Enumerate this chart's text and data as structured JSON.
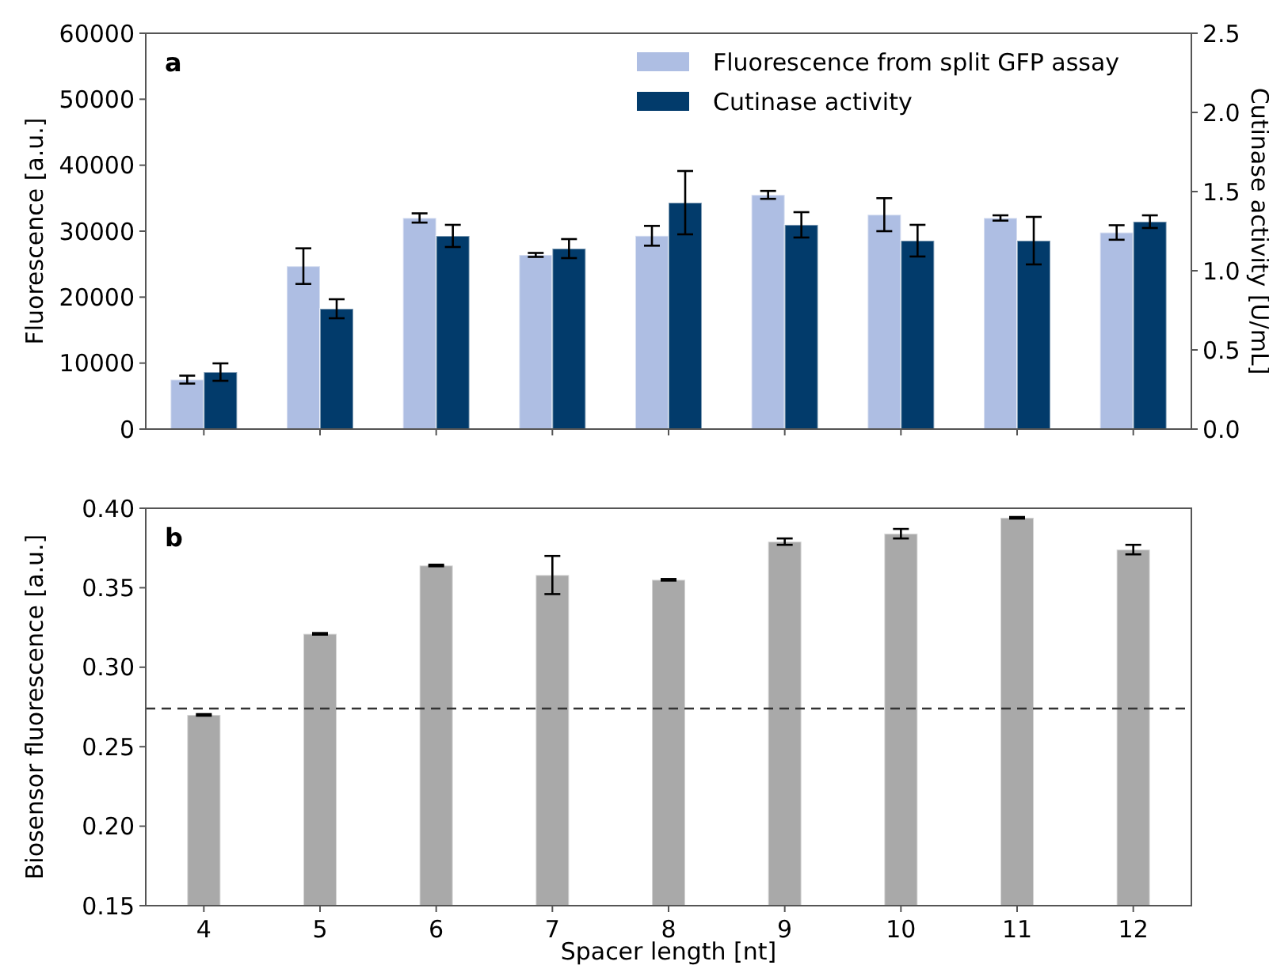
{
  "chart_data": [
    {
      "type": "bar",
      "annotations": [
        "a"
      ],
      "ylabel": "Fluorescence [a.u.]",
      "y2label": "Cutinase activity [U/mL]",
      "categories": [
        "4",
        "5",
        "6",
        "7",
        "8",
        "9",
        "10",
        "11",
        "12"
      ],
      "ylim": [
        0,
        60000
      ],
      "yticks": [
        0,
        10000,
        20000,
        30000,
        40000,
        50000,
        60000
      ],
      "y2lim": [
        0,
        2.5
      ],
      "y2ticks": [
        {
          "value": 0,
          "label": "0.0"
        },
        {
          "value": 0.5,
          "label": "0.5"
        },
        {
          "value": 1,
          "label": "1.0"
        },
        {
          "value": 1.5,
          "label": "1.5"
        },
        {
          "value": 2,
          "label": "2.0"
        },
        {
          "value": 2.5,
          "label": "2.5"
        }
      ],
      "tick_labels": "y",
      "legend": "top right",
      "grid": false,
      "series": [
        {
          "name": "Fluorescence from split GFP assay",
          "color": "#aebee3",
          "values": [
            7500,
            24700,
            32000,
            26400,
            29300,
            35500,
            32500,
            32000,
            29800
          ],
          "errors": [
            600,
            2700,
            700,
            300,
            1500,
            600,
            2500,
            400,
            1100
          ]
        },
        {
          "name": "Cutinase activity",
          "color": "#023b6b",
          "axis": "y2",
          "values": [
            0.36,
            0.76,
            1.22,
            1.14,
            1.43,
            1.29,
            1.19,
            1.19,
            1.31
          ],
          "errors": [
            0.055,
            0.06,
            0.07,
            0.06,
            0.2,
            0.08,
            0.1,
            0.15,
            0.04
          ]
        }
      ]
    },
    {
      "type": "bar",
      "annotations": [
        "b"
      ],
      "xlabel": "Spacer length [nt]",
      "ylabel": "Biosensor fluorescence [a.u.]",
      "categories": [
        "4",
        "5",
        "6",
        "7",
        "8",
        "9",
        "10",
        "11",
        "12"
      ],
      "ylim": [
        0.15,
        0.4
      ],
      "yticks": [
        {
          "value": 0.15,
          "label": "0.15"
        },
        {
          "value": 0.2,
          "label": "0.20"
        },
        {
          "value": 0.25,
          "label": "0.25"
        },
        {
          "value": 0.3,
          "label": "0.30"
        },
        {
          "value": 0.35,
          "label": "0.35"
        },
        {
          "value": 0.4,
          "label": "0.40"
        }
      ],
      "grid": false,
      "series": [
        {
          "color": "#a9a9a9",
          "values": [
            0.27,
            0.321,
            0.364,
            0.358,
            0.355,
            0.379,
            0.384,
            0.394,
            0.374
          ],
          "errors": [
            0.0005,
            0.0005,
            0.0005,
            0.012,
            0.0005,
            0.002,
            0.003,
            0.0005,
            0.003
          ]
        }
      ],
      "ref_lines": [
        {
          "axis": "y",
          "value": 0.274,
          "color": "#333333",
          "line_style": "dashed"
        }
      ]
    }
  ]
}
